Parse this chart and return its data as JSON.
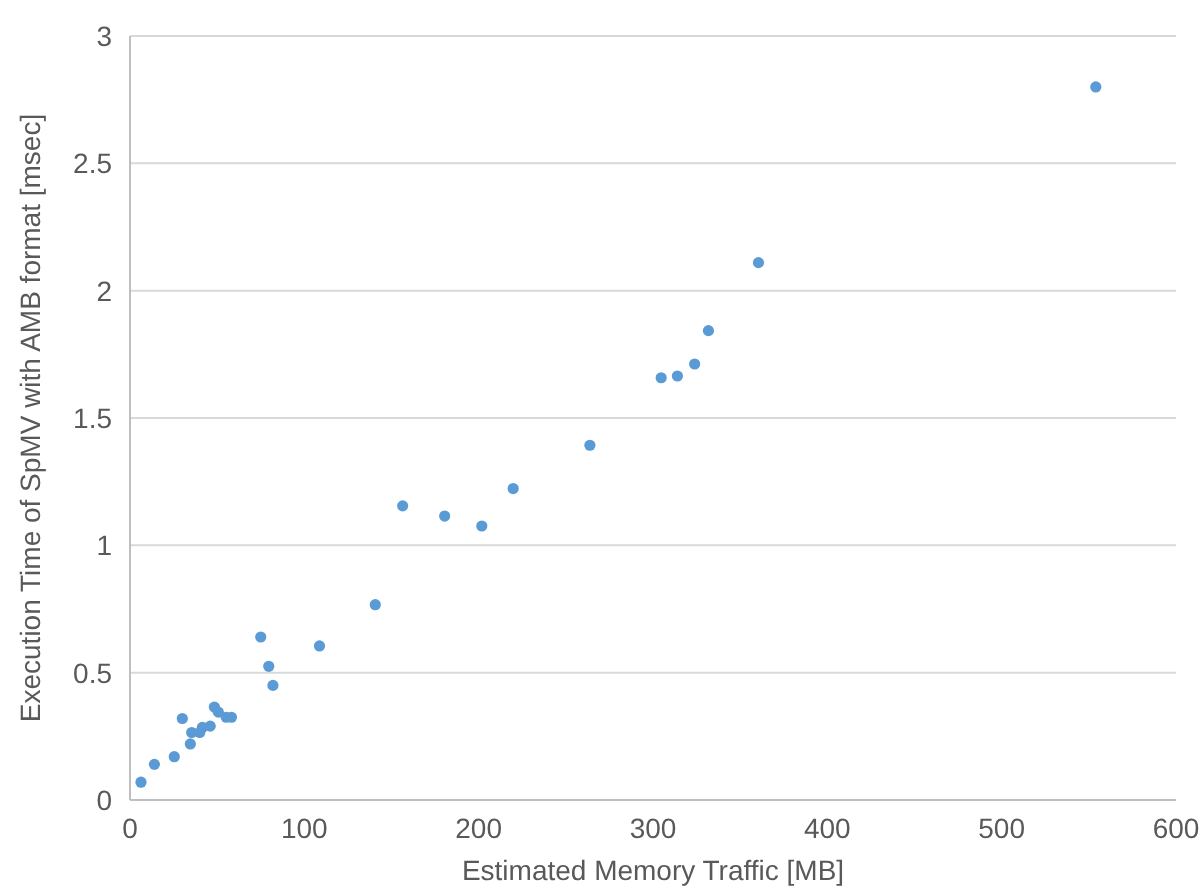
{
  "chart_data": {
    "type": "scatter",
    "xlabel": "Estimated Memory Traffic [MB]",
    "ylabel": "Execution Time of SpMV with AMB format [msec]",
    "x": [
      6.3,
      14,
      25.4,
      30,
      34.6,
      35.4,
      40,
      41.5,
      46,
      48.4,
      50.7,
      55.2,
      58.2,
      75,
      79.6,
      82,
      108.7,
      140.7,
      156.4,
      180.5,
      201.8,
      219.8,
      263.8,
      304.7,
      314,
      323.9,
      331.8,
      360.5,
      554
    ],
    "series": [
      {
        "color": "#5b9bd5",
        "values": [
          0.07,
          0.14,
          0.17,
          0.32,
          0.22,
          0.265,
          0.265,
          0.285,
          0.29,
          0.365,
          0.345,
          0.325,
          0.325,
          0.64,
          0.525,
          0.45,
          0.605,
          0.767,
          1.155,
          1.115,
          1.076,
          1.223,
          1.393,
          1.658,
          1.665,
          1.712,
          1.843,
          2.11,
          2.8
        ]
      }
    ],
    "xlim": [
      0,
      600
    ],
    "xticks": [
      0,
      100,
      200,
      300,
      400,
      500,
      600
    ],
    "ylim": [
      0,
      3
    ],
    "yticks": [
      0,
      0.5,
      1,
      1.5,
      2,
      2.5,
      3
    ],
    "grid": "y",
    "marker": "circle"
  }
}
